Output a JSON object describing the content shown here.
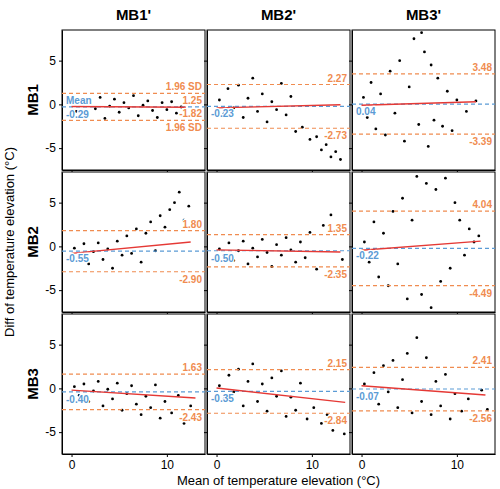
{
  "columns": [
    "MB1'",
    "MB2'",
    "MB3'"
  ],
  "rows": [
    "MB1",
    "MB2",
    "MB3"
  ],
  "x_label": "Mean of temperature elevation (°C)",
  "y_label": "Diff of temperature elevation (°C)",
  "chart_data": [
    {
      "type": "scatter",
      "color": "#000000",
      "marker": "circle",
      "tick_labels": "y",
      "xlim": [
        -1,
        14
      ],
      "ylim": [
        -7.5,
        8.5
      ],
      "xticks": [
        0,
        10
      ],
      "yticks": [
        -5,
        0,
        5
      ],
      "x": [
        0.2,
        0.5,
        1,
        1.5,
        2,
        2.5,
        3,
        3.5,
        4,
        4.5,
        5,
        5.5,
        6,
        6.5,
        7,
        7.5,
        8,
        8.5,
        9,
        9.5,
        10,
        10.5,
        11,
        11.5,
        12
      ],
      "values": [
        0.3,
        -0.8,
        0.5,
        -1.2,
        0.1,
        -0.5,
        0.8,
        -1.6,
        -0.2,
        0.6,
        -0.9,
        0.2,
        -0.4,
        1.0,
        -1.3,
        -0.1,
        0.4,
        -0.7,
        -1.5,
        0.2,
        -0.6,
        0.3,
        -1.0,
        -0.3,
        0.1
      ],
      "mean": {
        "name": "Mean",
        "value": -0.29,
        "label": "-0.29",
        "color": "#5b9bd5",
        "line_style": "dashed"
      },
      "upper": {
        "name": "1.96 SD",
        "value": 1.25,
        "label": "1.25",
        "color": "#f08c50",
        "line_style": "dashed"
      },
      "lower": {
        "name": "1.96 SD",
        "value": -1.82,
        "label": "-1.82",
        "color": "#f08c50",
        "line_style": "dashed"
      },
      "trend": {
        "x": [
          0,
          12
        ],
        "values": [
          -0.25,
          -0.33
        ],
        "color": "#e53935",
        "line_style": "solid"
      }
    },
    {
      "type": "scatter",
      "color": "#000000",
      "marker": "circle",
      "tick_labels": false,
      "xlim": [
        -1,
        14
      ],
      "ylim": [
        -7.5,
        8.5
      ],
      "xticks": [
        0,
        10
      ],
      "yticks": [
        -5,
        0,
        5
      ],
      "x": [
        0.3,
        0.8,
        1.2,
        1.8,
        2.3,
        2.8,
        3.3,
        3.8,
        4.3,
        4.8,
        5.3,
        5.8,
        6.3,
        6.8,
        7.3,
        7.8,
        8.3,
        9,
        9.8,
        10.5,
        11,
        11.5,
        12,
        12.5,
        13
      ],
      "values": [
        0.5,
        -1.0,
        1.8,
        -0.4,
        2.2,
        -1.5,
        0.7,
        3.0,
        -0.8,
        1.2,
        -2.0,
        0.3,
        -0.6,
        2.4,
        -1.2,
        0.9,
        -3.1,
        -2.6,
        -4.0,
        -3.7,
        -5.2,
        -4.6,
        -6.0,
        -5.4,
        -6.3
      ],
      "mean": {
        "value": -0.23,
        "label": "-0.23",
        "color": "#5b9bd5",
        "line_style": "dashed"
      },
      "upper": {
        "value": 2.27,
        "label": "2.27",
        "color": "#f08c50",
        "line_style": "dashed"
      },
      "lower": {
        "value": -2.73,
        "label": "-2.73",
        "color": "#f08c50",
        "line_style": "dashed"
      },
      "trend": {
        "x": [
          0,
          13
        ],
        "values": [
          -0.4,
          -0.05
        ],
        "color": "#e53935",
        "line_style": "solid"
      }
    },
    {
      "type": "scatter",
      "color": "#000000",
      "marker": "circle",
      "tick_labels": false,
      "xlim": [
        -1,
        14
      ],
      "ylim": [
        -7.5,
        8.5
      ],
      "xticks": [
        0,
        10
      ],
      "yticks": [
        -5,
        0,
        5
      ],
      "x": [
        0.2,
        0.6,
        1,
        1.5,
        2,
        2.5,
        3,
        3.5,
        4,
        4.5,
        5,
        5.5,
        6,
        6.3,
        6.6,
        7,
        7.3,
        7.6,
        8,
        8.5,
        9,
        9.5,
        10,
        11,
        12
      ],
      "values": [
        0.8,
        -1.5,
        2.5,
        -2.8,
        1.2,
        -3.5,
        3.8,
        -1.0,
        5.0,
        -4.2,
        2.0,
        7.5,
        -2.3,
        8.2,
        6.0,
        -4.8,
        4.5,
        -1.8,
        3.0,
        -2.5,
        1.5,
        -3.0,
        0.5,
        -0.8,
        0.4
      ],
      "mean": {
        "value": 0.04,
        "label": "0.04",
        "color": "#5b9bd5",
        "line_style": "dashed"
      },
      "upper": {
        "value": 3.48,
        "label": "3.48",
        "color": "#f08c50",
        "line_style": "dashed"
      },
      "lower": {
        "value": -3.39,
        "label": "-3.39",
        "color": "#f08c50",
        "line_style": "dashed"
      },
      "trend": {
        "x": [
          0,
          12
        ],
        "values": [
          -0.1,
          0.3
        ],
        "color": "#e53935",
        "line_style": "solid"
      }
    },
    {
      "type": "scatter",
      "color": "#000000",
      "marker": "circle",
      "tick_labels": "y",
      "xlim": [
        -1,
        14
      ],
      "ylim": [
        -7.5,
        8.5
      ],
      "xticks": [
        0,
        10
      ],
      "yticks": [
        -5,
        0,
        5
      ],
      "x": [
        0.3,
        0.8,
        1.3,
        1.8,
        2.3,
        2.8,
        3.3,
        3.8,
        4.3,
        4.8,
        5.3,
        5.8,
        6.3,
        6.8,
        7.3,
        7.8,
        8.3,
        8.8,
        9.3,
        9.8,
        10.3,
        10.8,
        11.3,
        11.8,
        12.3
      ],
      "values": [
        -0.2,
        -1.2,
        0.3,
        -2.0,
        -0.6,
        0.4,
        -1.5,
        -0.3,
        -2.5,
        0.6,
        -1.0,
        1.2,
        -0.8,
        2.0,
        -1.8,
        1.5,
        2.8,
        -0.5,
        3.5,
        2.2,
        4.2,
        5.0,
        6.2,
        3.0,
        4.6
      ],
      "mean": {
        "value": -0.55,
        "label": "-0.55",
        "color": "#5b9bd5",
        "line_style": "dashed"
      },
      "upper": {
        "value": 1.8,
        "label": "1.80",
        "color": "#f08c50",
        "line_style": "dashed"
      },
      "lower": {
        "value": -2.9,
        "label": "-2.90",
        "color": "#f08c50",
        "line_style": "dashed"
      },
      "trend": {
        "x": [
          0,
          12.5
        ],
        "values": [
          -0.8,
          0.5
        ],
        "color": "#e53935",
        "line_style": "solid"
      }
    },
    {
      "type": "scatter",
      "color": "#000000",
      "marker": "circle",
      "tick_labels": false,
      "xlim": [
        -1,
        14
      ],
      "ylim": [
        -7.5,
        8.5
      ],
      "xticks": [
        0,
        10
      ],
      "yticks": [
        -5,
        0,
        5
      ],
      "x": [
        0.3,
        0.8,
        1.3,
        1.8,
        2.3,
        2.8,
        3.3,
        3.8,
        4.3,
        4.8,
        5.3,
        5.8,
        6.3,
        6.8,
        7.3,
        7.8,
        8.3,
        8.8,
        9.3,
        9.8,
        10.5,
        11.2,
        12,
        12.6,
        13.2
      ],
      "values": [
        -0.3,
        -1.0,
        0.4,
        -1.6,
        -0.5,
        0.6,
        -2.0,
        -0.2,
        -1.2,
        0.8,
        -0.7,
        -2.3,
        0.2,
        -1.0,
        1.0,
        -0.4,
        -1.8,
        0.5,
        -1.3,
        1.6,
        -2.6,
        2.4,
        3.6,
        -3.0,
        -1.5
      ],
      "mean": {
        "value": -0.5,
        "label": "-0.50",
        "color": "#5b9bd5",
        "line_style": "dashed"
      },
      "upper": {
        "value": 1.35,
        "label": "1.35",
        "color": "#f08c50",
        "line_style": "dashed"
      },
      "lower": {
        "value": -2.35,
        "label": "-2.35",
        "color": "#f08c50",
        "line_style": "dashed"
      },
      "trend": {
        "x": [
          0,
          13
        ],
        "values": [
          -0.4,
          -0.65
        ],
        "color": "#e53935",
        "line_style": "solid"
      }
    },
    {
      "type": "scatter",
      "color": "#000000",
      "marker": "circle",
      "tick_labels": false,
      "xlim": [
        -1,
        14
      ],
      "ylim": [
        -7.5,
        8.5
      ],
      "xticks": [
        0,
        10
      ],
      "yticks": [
        -5,
        0,
        5
      ],
      "x": [
        0.3,
        0.8,
        1.3,
        1.8,
        2.3,
        2.8,
        3.3,
        3.8,
        4.3,
        4.8,
        5.3,
        5.8,
        6.3,
        6.8,
        7.3,
        7.8,
        8.3,
        8.8,
        9.3,
        9.8,
        10.3,
        10.8,
        11.3,
        11.8,
        12.3
      ],
      "values": [
        0.5,
        -1.8,
        2.8,
        -3.5,
        1.5,
        -4.5,
        4.0,
        -2.0,
        5.5,
        -6.0,
        3.0,
        8.0,
        -5.5,
        7.2,
        -7.0,
        6.5,
        -4.0,
        7.8,
        -2.5,
        5.0,
        3.0,
        -1.0,
        2.0,
        0.5,
        1.2
      ],
      "mean": {
        "value": -0.22,
        "label": "-0.22",
        "color": "#5b9bd5",
        "line_style": "dashed"
      },
      "upper": {
        "value": 4.04,
        "label": "4.04",
        "color": "#f08c50",
        "line_style": "dashed"
      },
      "lower": {
        "value": -4.49,
        "label": "-4.49",
        "color": "#f08c50",
        "line_style": "dashed"
      },
      "trend": {
        "x": [
          0,
          12.5
        ],
        "values": [
          -0.45,
          0.6
        ],
        "color": "#e53935",
        "line_style": "solid"
      }
    },
    {
      "type": "scatter",
      "color": "#000000",
      "marker": "circle",
      "tick_labels": true,
      "xlim": [
        -1,
        14
      ],
      "ylim": [
        -7.5,
        8.5
      ],
      "xticks": [
        0,
        10
      ],
      "yticks": [
        -5,
        0,
        5
      ],
      "x": [
        0.3,
        0.8,
        1.3,
        1.8,
        2.3,
        2.8,
        3.3,
        3.8,
        4.3,
        4.8,
        5.3,
        5.8,
        6.3,
        6.8,
        7.3,
        7.8,
        8.3,
        8.8,
        9.3,
        9.8,
        10.5,
        11.2,
        11.8,
        12.5,
        13
      ],
      "values": [
        0.2,
        -0.8,
        0.5,
        -1.5,
        -0.3,
        0.8,
        -2.0,
        -0.1,
        -1.2,
        0.6,
        -2.5,
        -0.6,
        0.3,
        -1.8,
        -3.0,
        -0.9,
        -2.2,
        0.4,
        -3.4,
        -1.5,
        -2.8,
        -0.8,
        -4.0,
        -2.0,
        -3.2
      ],
      "mean": {
        "value": -0.4,
        "label": "-0.40",
        "color": "#5b9bd5",
        "line_style": "dashed"
      },
      "upper": {
        "value": 1.63,
        "label": "1.63",
        "color": "#f08c50",
        "line_style": "dashed"
      },
      "lower": {
        "value": -2.43,
        "label": "-2.43",
        "color": "#f08c50",
        "line_style": "dashed"
      },
      "trend": {
        "x": [
          0,
          13
        ],
        "values": [
          -0.2,
          -1.1
        ],
        "color": "#e53935",
        "line_style": "solid"
      }
    },
    {
      "type": "scatter",
      "color": "#000000",
      "marker": "circle",
      "tick_labels": "x",
      "xlim": [
        -1,
        14
      ],
      "ylim": [
        -7.5,
        8.5
      ],
      "xticks": [
        0,
        10
      ],
      "yticks": [
        -5,
        0,
        5
      ],
      "x": [
        0.3,
        0.8,
        1.3,
        1.8,
        2.3,
        2.8,
        3.3,
        3.8,
        4.3,
        4.8,
        5.3,
        5.8,
        6.3,
        6.8,
        7.3,
        7.8,
        8.3,
        8.8,
        9.5,
        10.2,
        11,
        11.6,
        12.2,
        12.8,
        13.4
      ],
      "values": [
        0.3,
        -1.2,
        1.5,
        -0.4,
        2.2,
        -2.0,
        0.8,
        2.8,
        -1.5,
        0.5,
        -2.6,
        1.2,
        -0.9,
        2.0,
        -3.2,
        -1.0,
        -2.5,
        0.6,
        -3.5,
        -2.2,
        -4.0,
        -3.0,
        -4.8,
        -3.8,
        -5.2
      ],
      "mean": {
        "value": -0.35,
        "label": "-0.35",
        "color": "#5b9bd5",
        "line_style": "dashed"
      },
      "upper": {
        "value": 2.15,
        "label": "2.15",
        "color": "#f08c50",
        "line_style": "dashed"
      },
      "lower": {
        "value": -2.84,
        "label": "-2.84",
        "color": "#f08c50",
        "line_style": "dashed"
      },
      "trend": {
        "x": [
          0,
          13.5
        ],
        "values": [
          0.05,
          -1.6
        ],
        "color": "#e53935",
        "line_style": "solid"
      }
    },
    {
      "type": "scatter",
      "color": "#000000",
      "marker": "circle",
      "tick_labels": "x",
      "xlim": [
        -1,
        14
      ],
      "ylim": [
        -7.5,
        8.5
      ],
      "xticks": [
        0,
        10
      ],
      "yticks": [
        -5,
        0,
        5
      ],
      "x": [
        0.3,
        0.8,
        1.3,
        1.8,
        2.3,
        2.8,
        3.3,
        3.8,
        4.3,
        4.8,
        5.3,
        5.8,
        6.3,
        6.8,
        7.3,
        7.8,
        8.3,
        8.8,
        9.3,
        9.8,
        10.5,
        11.2,
        12,
        12.6,
        13.2
      ],
      "values": [
        0.5,
        -1.0,
        1.8,
        -1.8,
        2.6,
        -0.4,
        3.2,
        -2.2,
        1.0,
        4.0,
        -2.8,
        5.8,
        -1.5,
        3.5,
        -3.0,
        0.8,
        -2.0,
        1.6,
        -3.5,
        -0.6,
        -2.6,
        -1.2,
        -3.8,
        -0.2,
        -2.4
      ],
      "mean": {
        "value": -0.07,
        "label": "-0.07",
        "color": "#5b9bd5",
        "line_style": "dashed"
      },
      "upper": {
        "value": 2.41,
        "label": "2.41",
        "color": "#f08c50",
        "line_style": "dashed"
      },
      "lower": {
        "value": -2.56,
        "label": "-2.56",
        "color": "#f08c50",
        "line_style": "dashed"
      },
      "trend": {
        "x": [
          0,
          13
        ],
        "values": [
          0.3,
          -0.75
        ],
        "color": "#e53935",
        "line_style": "solid"
      }
    }
  ]
}
